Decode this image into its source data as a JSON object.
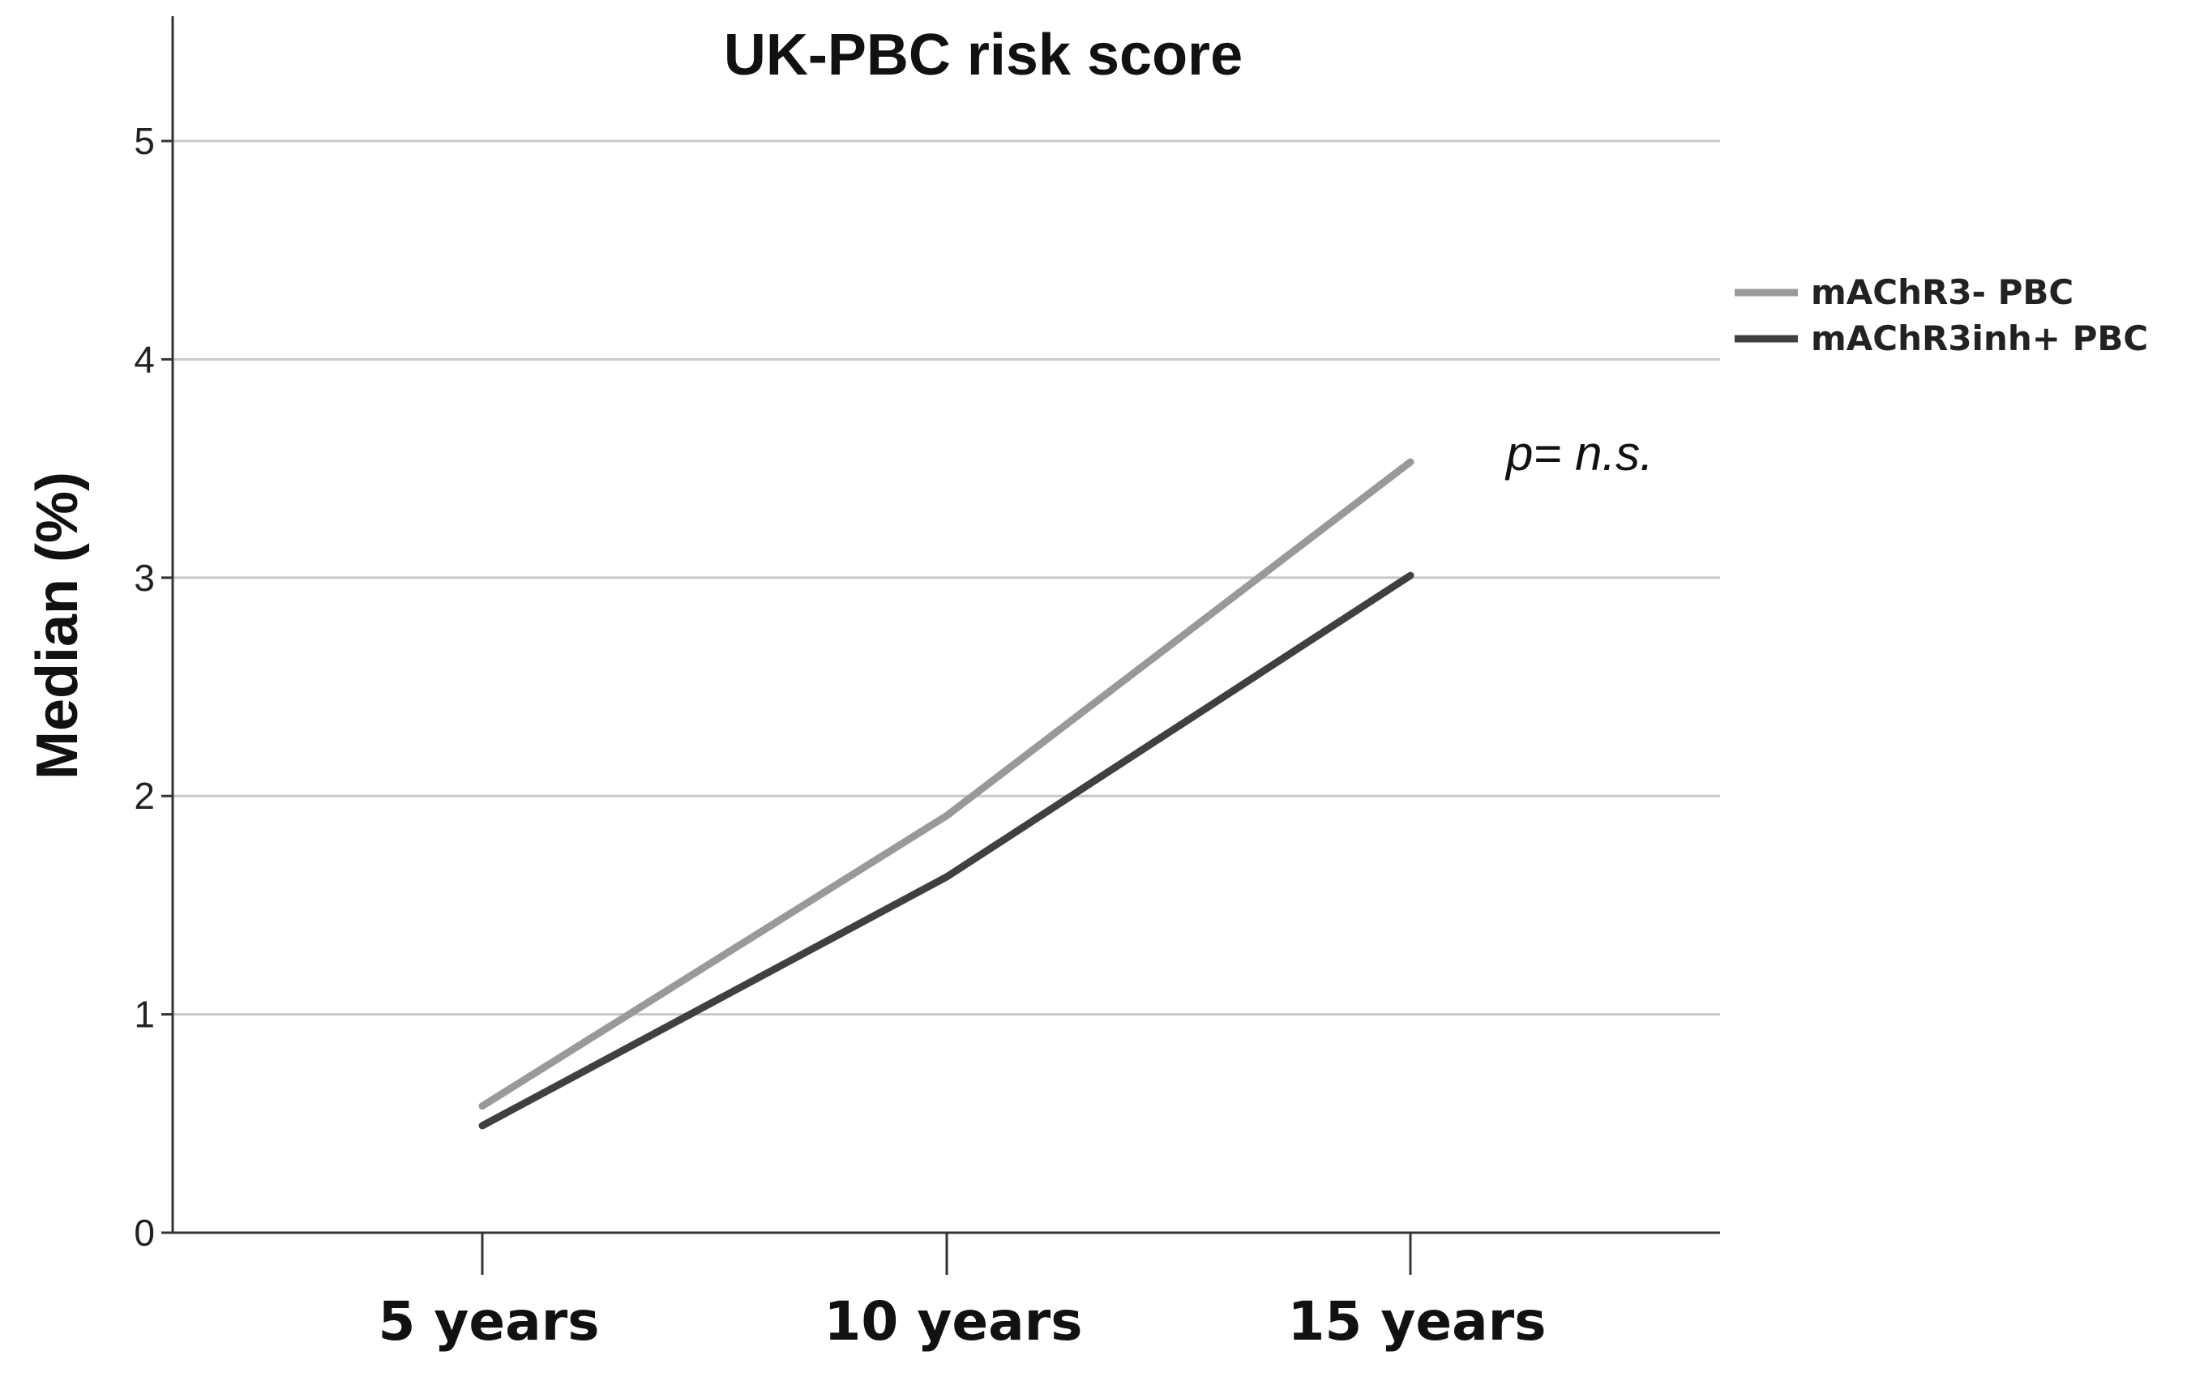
{
  "chart_data": {
    "type": "line",
    "title": "UK-PBC risk score",
    "xlabel": "",
    "ylabel": "Median (%)",
    "categories": [
      "5 years",
      "10 years",
      "15 years"
    ],
    "ylim": [
      0,
      5.5
    ],
    "yticks": [
      "0",
      "1",
      "2",
      "3",
      "4",
      "5"
    ],
    "grid": true,
    "legend_position": "right",
    "series": [
      {
        "name": "mAChR3- PBC",
        "values": [
          0.58,
          1.91,
          3.53
        ],
        "color": "#999999"
      },
      {
        "name": "mAChR3inh+ PBC",
        "values": [
          0.49,
          1.63,
          3.01
        ],
        "color": "#404040"
      }
    ],
    "annotation": "p= n.s."
  }
}
